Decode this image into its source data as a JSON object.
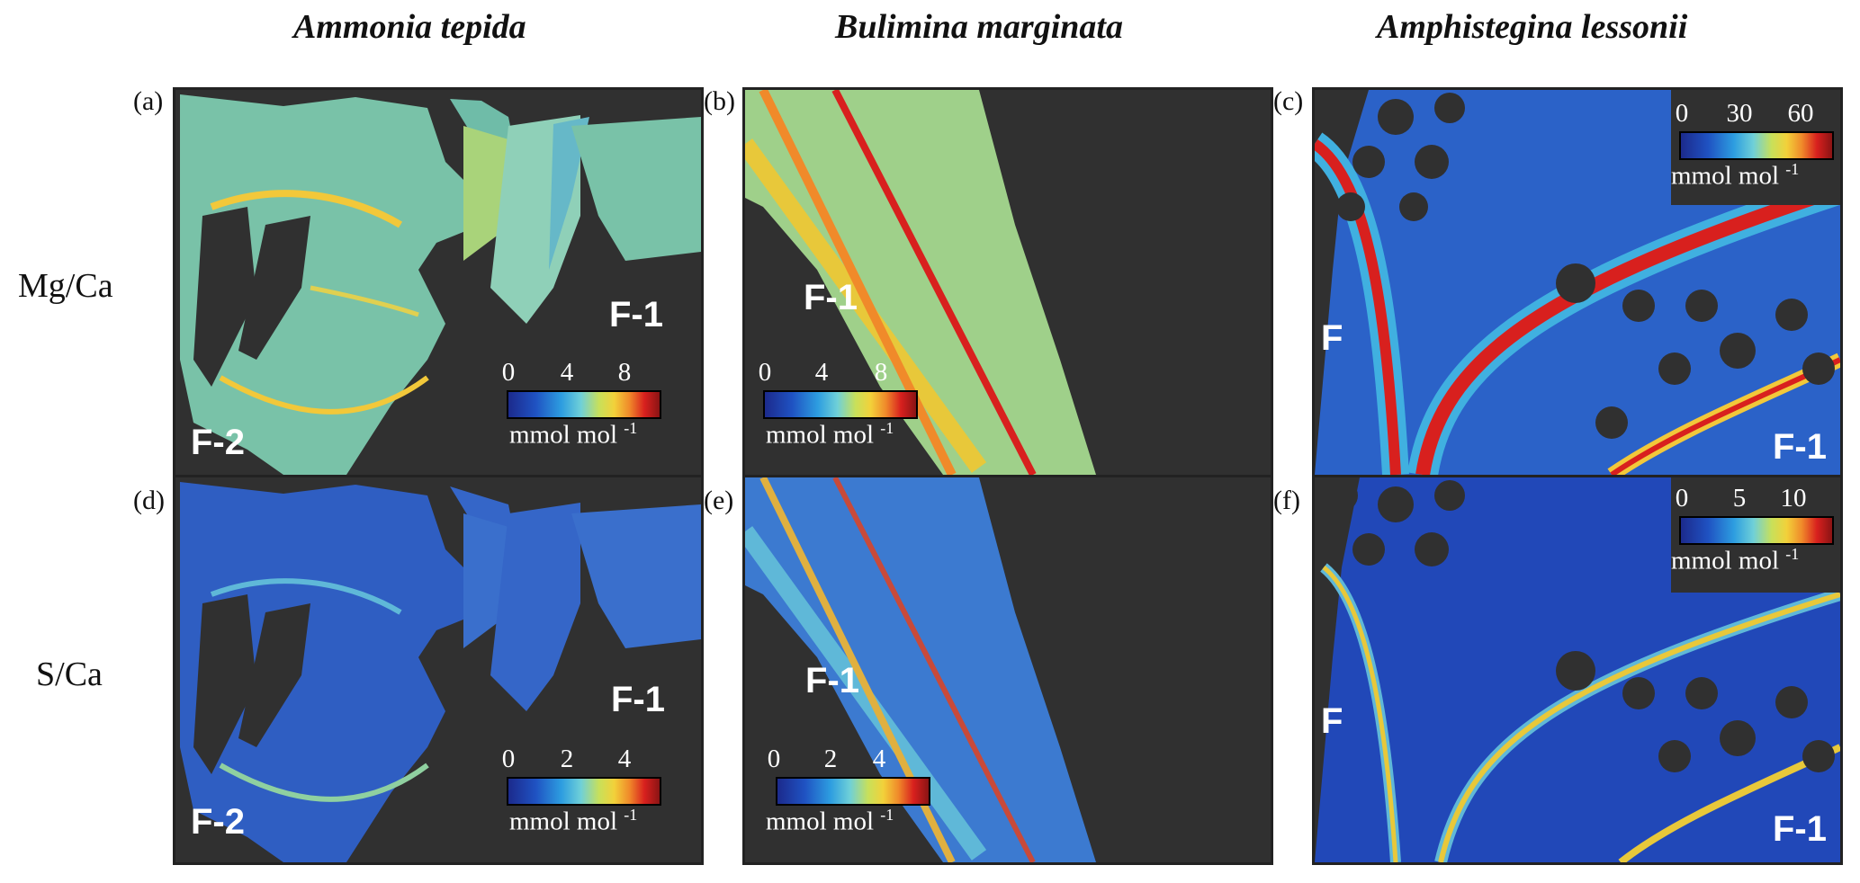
{
  "columns": [
    "Ammonia tepida",
    "Bulimina marginata",
    "Amphistegina lessonii"
  ],
  "rows": [
    "Mg/Ca",
    "S/Ca"
  ],
  "panels": {
    "a": {
      "letter": "(a)",
      "labels": [
        "F-1",
        "F-2"
      ],
      "ticks": [
        "0",
        "4",
        "8"
      ],
      "unit": "mmol mol",
      "unit_exp": "-1"
    },
    "b": {
      "letter": "(b)",
      "labels": [
        "F-1"
      ],
      "ticks": [
        "0",
        "4",
        "8"
      ],
      "unit": "mmol mol",
      "unit_exp": "-1"
    },
    "c": {
      "letter": "(c)",
      "labels": [
        "F",
        "F-1"
      ],
      "ticks": [
        "0",
        "30",
        "60"
      ],
      "unit": "mmol mol",
      "unit_exp": "-1"
    },
    "d": {
      "letter": "(d)",
      "labels": [
        "F-1",
        "F-2"
      ],
      "ticks": [
        "0",
        "2",
        "4"
      ],
      "unit": "mmol mol",
      "unit_exp": "-1"
    },
    "e": {
      "letter": "(e)",
      "labels": [
        "F-1"
      ],
      "ticks": [
        "0",
        "2",
        "4"
      ],
      "unit": "mmol mol",
      "unit_exp": "-1"
    },
    "f": {
      "letter": "(f)",
      "labels": [
        "F",
        "F-1"
      ],
      "ticks": [
        "0",
        "5",
        "10"
      ],
      "unit": "mmol mol",
      "unit_exp": "-1"
    }
  },
  "colors": {
    "background": "#303030",
    "low": "#1f52c2",
    "mid": "#6fd0d8",
    "high": "#d8201e"
  }
}
